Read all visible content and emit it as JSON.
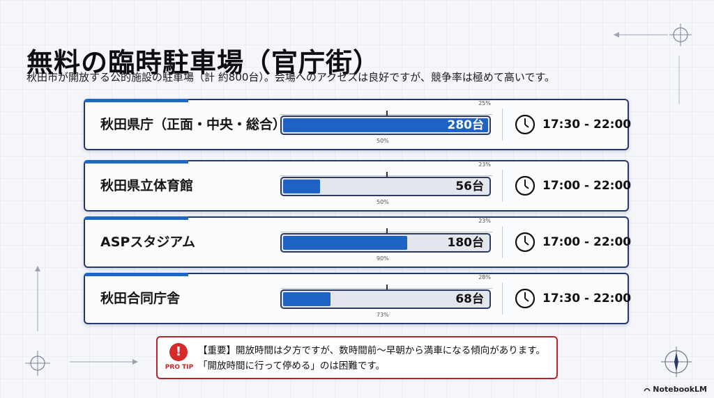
{
  "header": {
    "title": "無料の臨時駐車場（官庁街）",
    "subtitle": "秋田市が開放する公的施設の駐車場（計 約800台）。会場へのアクセスは良好ですが、競争率は極めて高いです。"
  },
  "lots": [
    {
      "name": "秋田県庁（正面・中央・総合）",
      "capacity": "280台",
      "fill": 1.0,
      "pct_top": "25%",
      "pct_bottom": "50%",
      "time": "17:30 - 22:00"
    },
    {
      "name": "秋田県立体育館",
      "capacity": "56台",
      "fill": 0.19,
      "pct_top": "23%",
      "pct_bottom": "50%",
      "time": "17:00 - 22:00"
    },
    {
      "name": "ASPスタジアム",
      "capacity": "180台",
      "fill": 0.61,
      "pct_top": "23%",
      "pct_bottom": "90%",
      "time": "17:00 - 22:00"
    },
    {
      "name": "秋田合同庁舎",
      "capacity": "68台",
      "fill": 0.24,
      "pct_top": "28%",
      "pct_bottom": "73%",
      "time": "17:30 - 22:00"
    }
  ],
  "tip": {
    "label": "PRO TIP",
    "line1": "【重要】開放時間は夕方ですが、数時間前〜早朝から満車になる傾向があります。",
    "line2": "「開放時間に行って停める」のは困難です。"
  },
  "footer": {
    "brand": "NotebookLM"
  },
  "colors": {
    "accent": "#1e63c4",
    "card_border": "#26376a",
    "warning": "#c02a2a"
  }
}
